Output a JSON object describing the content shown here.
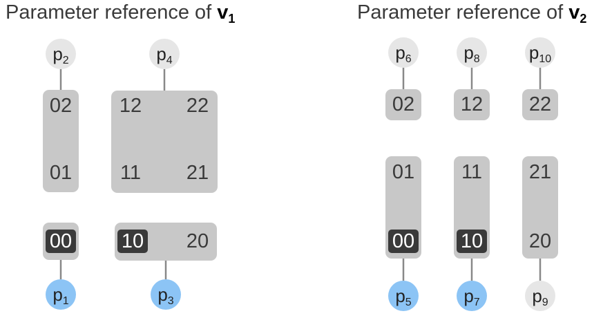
{
  "titles": {
    "v1": {
      "prefix": "Parameter reference of ",
      "var": "v",
      "sub": "1"
    },
    "v2": {
      "prefix": "Parameter reference of ",
      "var": "v",
      "sub": "2"
    }
  },
  "nodes": {
    "p1": {
      "base": "p",
      "sub": "1"
    },
    "p2": {
      "base": "p",
      "sub": "2"
    },
    "p3": {
      "base": "p",
      "sub": "3"
    },
    "p4": {
      "base": "p",
      "sub": "4"
    },
    "p5": {
      "base": "p",
      "sub": "5"
    },
    "p6": {
      "base": "p",
      "sub": "6"
    },
    "p7": {
      "base": "p",
      "sub": "7"
    },
    "p8": {
      "base": "p",
      "sub": "8"
    },
    "p9": {
      "base": "p",
      "sub": "9"
    },
    "p10": {
      "base": "p",
      "sub": "10"
    }
  },
  "cells": {
    "v1_02": "02",
    "v1_01": "01",
    "v1_12": "12",
    "v1_22": "22",
    "v1_11": "11",
    "v1_21": "21",
    "v1_00": "00",
    "v1_10": "10",
    "v1_20": "20",
    "v2_02": "02",
    "v2_12": "12",
    "v2_22": "22",
    "v2_01": "01",
    "v2_00": "00",
    "v2_11": "11",
    "v2_10": "10",
    "v2_21": "21",
    "v2_20": "20"
  },
  "colors": {
    "box": "#c8c8c8",
    "highlight": "#3a3a3a",
    "node_gray": "#e6e6e6",
    "node_blue": "#8cc4f5",
    "line": "#888888"
  }
}
